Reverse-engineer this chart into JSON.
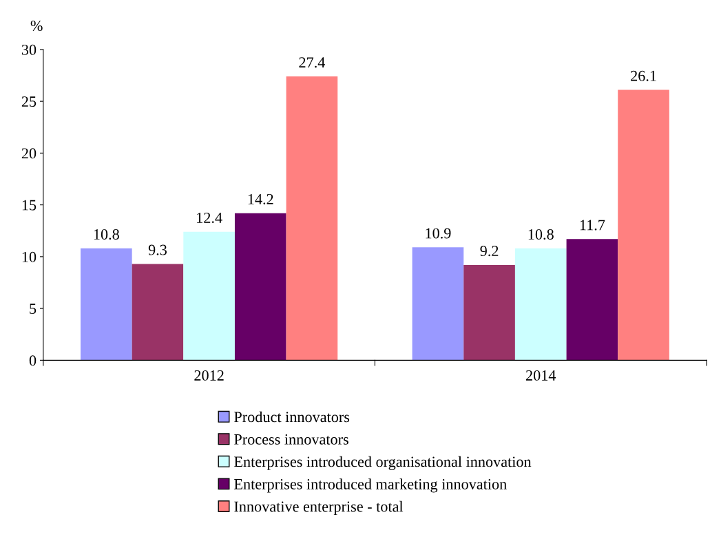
{
  "chart_data": {
    "type": "bar",
    "ylabel": "%",
    "categories": [
      "2012",
      "2014"
    ],
    "series": [
      {
        "name": "Product innovators",
        "color": "#9999ff",
        "values": [
          10.8,
          10.9
        ]
      },
      {
        "name": "Process innovators",
        "color": "#993366",
        "values": [
          9.3,
          9.2
        ]
      },
      {
        "name": "Enterprises introduced organisational innovation",
        "color": "#ccffff",
        "values": [
          12.4,
          10.8
        ]
      },
      {
        "name": "Enterprises introduced marketing innovation",
        "color": "#660066",
        "values": [
          14.2,
          11.7
        ]
      },
      {
        "name": "Innovative enterprise - total",
        "color": "#ff8080",
        "values": [
          27.4,
          26.1
        ]
      }
    ],
    "ylim": [
      0,
      30
    ],
    "yticks": [
      0,
      5,
      10,
      15,
      20,
      25,
      30
    ],
    "data_labels": true,
    "grid": false,
    "legend": "bottom"
  }
}
